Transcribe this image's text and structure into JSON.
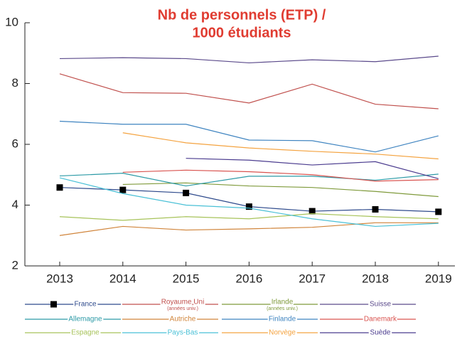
{
  "chart_data": {
    "type": "line",
    "title": [
      "Nb de personnels (ETP) /",
      "1000 étudiants"
    ],
    "categories": [
      "2013",
      "2014",
      "2015",
      "2016",
      "2017",
      "2018",
      "2019"
    ],
    "ylim": [
      2,
      10
    ],
    "yticks": [
      2,
      4,
      6,
      8,
      10
    ],
    "series": [
      {
        "name": "France",
        "color": "#2e4a8c",
        "marker": "square",
        "values": [
          4.58,
          4.5,
          4.4,
          3.95,
          3.8,
          3.86,
          3.78
        ]
      },
      {
        "name": "Royaume Uni",
        "name_note": "(années univ.)",
        "color": "#c0504d",
        "values": [
          8.32,
          7.7,
          7.68,
          7.36,
          7.98,
          7.32,
          7.17
        ]
      },
      {
        "name": "Irlande",
        "name_note": "(années univ.)",
        "color": "#7f9a3b",
        "values": [
          null,
          4.68,
          4.73,
          4.63,
          4.58,
          4.45,
          4.28
        ]
      },
      {
        "name": "Suisse",
        "color": "#5b4a8b",
        "values": [
          8.82,
          8.85,
          8.82,
          8.68,
          8.78,
          8.72,
          8.9
        ]
      },
      {
        "name": "Allemagne",
        "color": "#2c9aa6",
        "values": [
          4.96,
          5.05,
          4.63,
          4.95,
          4.95,
          4.82,
          5.02
        ]
      },
      {
        "name": "Autriche",
        "color": "#d0843a",
        "values": [
          3.0,
          3.3,
          3.18,
          3.22,
          3.27,
          3.42,
          3.42
        ]
      },
      {
        "name": "Finlande",
        "color": "#3f84c0",
        "values": [
          6.76,
          6.66,
          6.66,
          6.14,
          6.12,
          5.75,
          6.28
        ]
      },
      {
        "name": "Danemark",
        "color": "#d9534f",
        "values": [
          null,
          5.08,
          5.15,
          5.1,
          5.0,
          4.79,
          4.84
        ]
      },
      {
        "name": "Espagne",
        "color": "#a7c35a",
        "values": [
          3.62,
          3.5,
          3.62,
          3.55,
          3.72,
          3.62,
          3.55
        ]
      },
      {
        "name": "Pays-Bas",
        "color": "#49c0d6",
        "values": [
          4.9,
          4.38,
          4.0,
          3.9,
          3.55,
          3.3,
          3.4
        ]
      },
      {
        "name": "Norvège",
        "color": "#f4a340",
        "values": [
          null,
          6.38,
          6.05,
          5.88,
          5.77,
          5.68,
          5.52
        ]
      },
      {
        "name": "Suède",
        "color": "#4b3c8f",
        "values": [
          null,
          null,
          5.54,
          5.48,
          5.32,
          5.43,
          4.87
        ]
      }
    ]
  }
}
